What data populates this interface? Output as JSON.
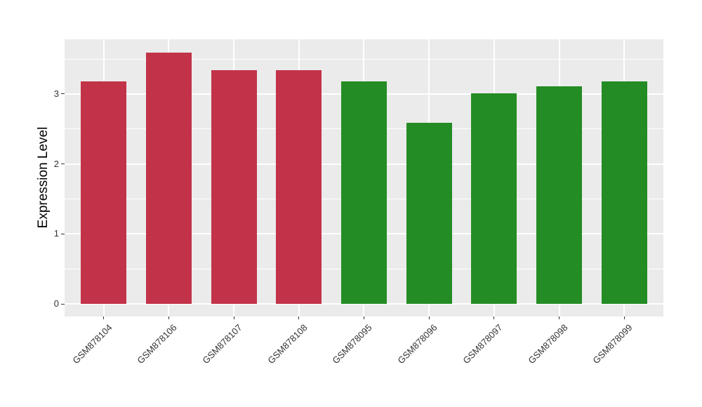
{
  "chart_data": {
    "type": "bar",
    "title": "",
    "xlabel": "",
    "ylabel": "Expression Level",
    "categories": [
      "GSM878104",
      "GSM878106",
      "GSM878107",
      "GSM878108",
      "GSM878095",
      "GSM878096",
      "GSM878097",
      "GSM878098",
      "GSM878099"
    ],
    "values": [
      3.18,
      3.59,
      3.34,
      3.34,
      3.18,
      2.59,
      3.01,
      3.11,
      3.18
    ],
    "bar_colors": [
      "#C23349",
      "#C23349",
      "#C23349",
      "#C23349",
      "#248C24",
      "#248C24",
      "#248C24",
      "#248C24",
      "#248C24"
    ],
    "group_colors": {
      "red_group": "#C23349",
      "green_group": "#248C24"
    },
    "yticks": [
      0,
      1,
      2,
      3
    ],
    "minor_yticks": [
      0.5,
      1.5,
      2.5,
      3.5
    ],
    "ylim": [
      -0.18,
      3.77
    ],
    "grid": true,
    "legend": "none",
    "x_label_rotation_deg": 45,
    "style_colors": {
      "panel_background": "#EBEBEB",
      "gridline": "#FFFFFF",
      "axis_text": "#333333",
      "axis_title": "#000000",
      "figure_background": "#FFFFFF"
    }
  }
}
